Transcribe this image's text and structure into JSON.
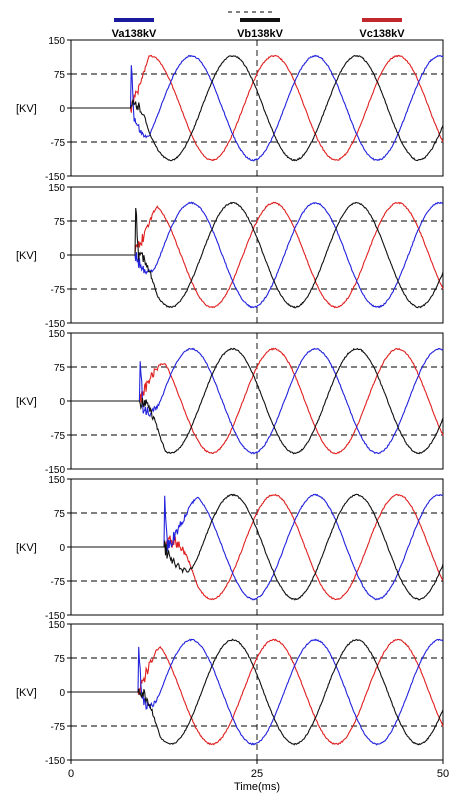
{
  "legend": [
    {
      "label": "Va138kV",
      "color": "#1a1a9e"
    },
    {
      "label": "Vb138kV",
      "color": "#111111"
    },
    {
      "label": "Vc138kV",
      "color": "#c0282c"
    }
  ],
  "xlabel": "Time(ms)",
  "colors": {
    "Va": "#2222dd",
    "Vb": "#111111",
    "Vc": "#e02020",
    "frame": "#000000"
  },
  "chart_data": [
    {
      "type": "line",
      "title": "",
      "ylabel": "[KV]",
      "xlim": [
        0,
        50
      ],
      "ylim": [
        -150,
        150
      ],
      "yticks": [
        -150,
        -75,
        0,
        75,
        150
      ],
      "xticks": [
        0,
        25,
        50
      ],
      "grid": "dashed at y=±75, vertical dashed at x=25",
      "fault_ms": 8.0,
      "fault_start": "Va",
      "transient_ms": 2.5,
      "peak_kV": 115,
      "series": [
        {
          "name": "Va138kV"
        },
        {
          "name": "Vb138kV"
        },
        {
          "name": "Vc138kV"
        }
      ]
    },
    {
      "type": "line",
      "title": "",
      "ylabel": "[KV]",
      "xlim": [
        0,
        50
      ],
      "ylim": [
        -150,
        150
      ],
      "yticks": [
        -150,
        -75,
        0,
        75,
        150
      ],
      "xticks": [
        0,
        25,
        50
      ],
      "grid": "dashed at y=±75, vertical dashed at x=25",
      "fault_ms": 8.6,
      "fault_start": "Vb",
      "transient_ms": 3.0,
      "peak_kV": 115,
      "series": [
        {
          "name": "Va138kV"
        },
        {
          "name": "Vb138kV"
        },
        {
          "name": "Vc138kV"
        }
      ]
    },
    {
      "type": "line",
      "title": "",
      "ylabel": "[KV]",
      "xlim": [
        0,
        50
      ],
      "ylim": [
        -150,
        150
      ],
      "yticks": [
        -150,
        -75,
        0,
        75,
        150
      ],
      "xticks": [
        0,
        25,
        50
      ],
      "grid": "dashed at y=±75, vertical dashed at x=25",
      "fault_ms": 9.2,
      "fault_start": "Va",
      "transient_ms": 3.5,
      "peak_kV": 115,
      "series": [
        {
          "name": "Va138kV"
        },
        {
          "name": "Vb138kV"
        },
        {
          "name": "Vc138kV"
        }
      ]
    },
    {
      "type": "line",
      "title": "",
      "ylabel": "[KV]",
      "xlim": [
        0,
        50
      ],
      "ylim": [
        -150,
        150
      ],
      "yticks": [
        -150,
        -75,
        0,
        75,
        150
      ],
      "xticks": [
        0,
        25,
        50
      ],
      "grid": "dashed at y=±75, vertical dashed at x=25",
      "fault_ms": 12.5,
      "fault_start": "Va",
      "transient_ms": 4.5,
      "peak_kV": 115,
      "series": [
        {
          "name": "Va138kV"
        },
        {
          "name": "Vb138kV"
        },
        {
          "name": "Vc138kV"
        }
      ]
    },
    {
      "type": "line",
      "title": "",
      "ylabel": "[KV]",
      "xlim": [
        0,
        50
      ],
      "ylim": [
        -150,
        150
      ],
      "yticks": [
        -150,
        -75,
        0,
        75,
        150
      ],
      "xticks": [
        0,
        25,
        50
      ],
      "grid": "dashed at y=±75, vertical dashed at x=25",
      "fault_ms": 9.0,
      "fault_start": "Va",
      "transient_ms": 3.0,
      "peak_kV": 115,
      "series": [
        {
          "name": "Va138kV"
        },
        {
          "name": "Vb138kV"
        },
        {
          "name": "Vc138kV"
        }
      ]
    }
  ]
}
